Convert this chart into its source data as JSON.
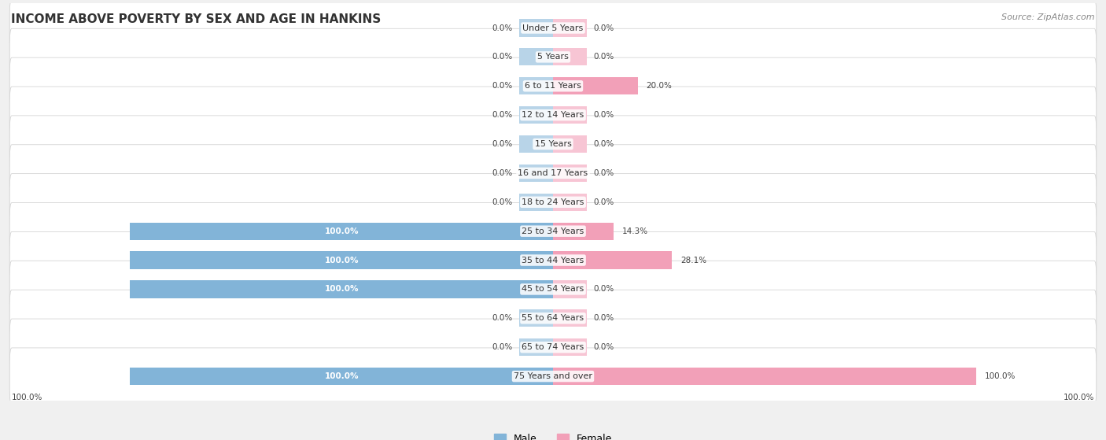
{
  "title": "INCOME ABOVE POVERTY BY SEX AND AGE IN HANKINS",
  "source": "Source: ZipAtlas.com",
  "categories": [
    "Under 5 Years",
    "5 Years",
    "6 to 11 Years",
    "12 to 14 Years",
    "15 Years",
    "16 and 17 Years",
    "18 to 24 Years",
    "25 to 34 Years",
    "35 to 44 Years",
    "45 to 54 Years",
    "55 to 64 Years",
    "65 to 74 Years",
    "75 Years and over"
  ],
  "male_values": [
    0.0,
    0.0,
    0.0,
    0.0,
    0.0,
    0.0,
    0.0,
    100.0,
    100.0,
    100.0,
    0.0,
    0.0,
    100.0
  ],
  "female_values": [
    0.0,
    0.0,
    20.0,
    0.0,
    0.0,
    0.0,
    0.0,
    14.3,
    28.1,
    0.0,
    0.0,
    0.0,
    100.0
  ],
  "male_color": "#82b4d8",
  "female_color": "#f2a0b8",
  "male_color_stub": "#b8d4e8",
  "female_color_stub": "#f7c5d4",
  "row_bg_color": "#efefef",
  "row_border_color": "#dddddd",
  "legend_male": "Male",
  "legend_female": "Female",
  "max_value": 100.0,
  "stub_value": 8.0,
  "figsize": [
    14.06,
    5.59
  ],
  "dpi": 100
}
